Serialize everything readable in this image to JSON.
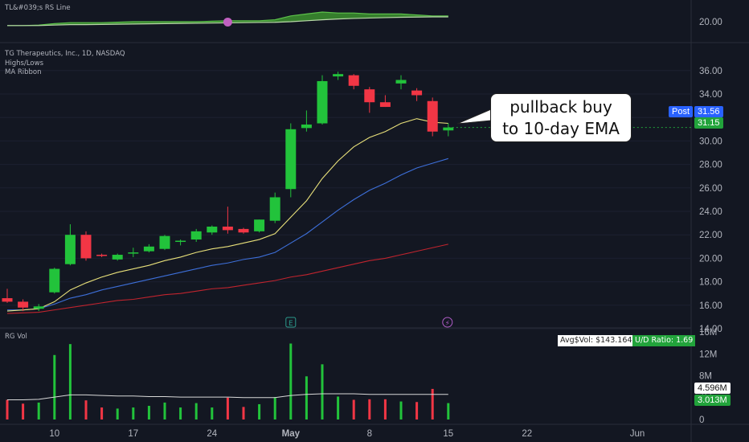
{
  "rs_pane": {
    "label": "TL&#039;s RS Line",
    "scale_label": "20.00"
  },
  "price_pane": {
    "title": "TG Therapeutics, Inc., 1D, NASDAQ",
    "indicators": [
      "Highs/Lows",
      "MA Ribbon"
    ],
    "post_label": "Post",
    "post_price": "31.56",
    "last_price": "31.15",
    "event_markers": [
      "E",
      "⚡"
    ],
    "annotation": [
      "pullback buy",
      "to 10-day EMA"
    ]
  },
  "volume_pane": {
    "label": "RG Vol",
    "avg_dollar_vol": "Avg$Vol: $143.164M",
    "ud_ratio": "U/D Ratio: 1.69",
    "avg_vol_label": "4.596M",
    "last_vol_label": "3.013M",
    "ticks": [
      "16M",
      "12M",
      "8M",
      "4M",
      "0"
    ]
  },
  "x_axis": {
    "labels": [
      {
        "text": "10",
        "index": 3
      },
      {
        "text": "17",
        "index": 8
      },
      {
        "text": "24",
        "index": 13
      },
      {
        "text": "May",
        "index": 18
      },
      {
        "text": "8",
        "index": 23
      },
      {
        "text": "15",
        "index": 28
      },
      {
        "text": "22",
        "index": 33
      },
      {
        "text": "Jun",
        "index": 40
      }
    ]
  },
  "colors": {
    "background": "#131722",
    "up": "#22c33b",
    "down": "#f23645",
    "ema10": "#e8e07a",
    "ma21": "#3d6fd9",
    "ma50": "#c0242e",
    "rs_fill": "#3a8a2e",
    "rs_line": "#b8d9a8",
    "rs_marker": "#c060c0",
    "post_badge": "#2962ff",
    "last_badge": "#22a33b"
  },
  "chart_data": {
    "type": "candlestick",
    "title": "TG Therapeutics, Inc., 1D, NASDAQ",
    "y_ticks": [
      14.0,
      16.0,
      18.0,
      20.0,
      22.0,
      24.0,
      26.0,
      28.0,
      30.0,
      32.0,
      34.0,
      36.0
    ],
    "ylim": [
      14,
      37.2
    ],
    "candles": [
      {
        "o": 16.6,
        "h": 17.4,
        "l": 16.2,
        "c": 16.3
      },
      {
        "o": 16.3,
        "h": 16.5,
        "l": 15.5,
        "c": 15.8
      },
      {
        "o": 15.7,
        "h": 16.1,
        "l": 15.5,
        "c": 15.9
      },
      {
        "o": 17.1,
        "h": 19.2,
        "l": 17.0,
        "c": 19.1
      },
      {
        "o": 19.5,
        "h": 22.9,
        "l": 19.4,
        "c": 22.0
      },
      {
        "o": 22.0,
        "h": 22.3,
        "l": 19.8,
        "c": 20.0
      },
      {
        "o": 20.3,
        "h": 20.4,
        "l": 20.1,
        "c": 20.2
      },
      {
        "o": 19.9,
        "h": 20.4,
        "l": 19.8,
        "c": 20.3
      },
      {
        "o": 20.4,
        "h": 20.9,
        "l": 20.1,
        "c": 20.5
      },
      {
        "o": 20.6,
        "h": 21.2,
        "l": 20.5,
        "c": 21.0
      },
      {
        "o": 20.8,
        "h": 22.0,
        "l": 20.7,
        "c": 21.9
      },
      {
        "o": 21.4,
        "h": 21.6,
        "l": 21.1,
        "c": 21.5
      },
      {
        "o": 21.6,
        "h": 22.5,
        "l": 21.4,
        "c": 22.3
      },
      {
        "o": 22.2,
        "h": 22.8,
        "l": 22.0,
        "c": 22.7
      },
      {
        "o": 22.7,
        "h": 24.4,
        "l": 22.1,
        "c": 22.4
      },
      {
        "o": 22.5,
        "h": 22.6,
        "l": 22.1,
        "c": 22.2
      },
      {
        "o": 22.3,
        "h": 23.3,
        "l": 22.2,
        "c": 23.3
      },
      {
        "o": 23.2,
        "h": 25.6,
        "l": 23.0,
        "c": 25.2
      },
      {
        "o": 25.9,
        "h": 31.5,
        "l": 25.2,
        "c": 31.0
      },
      {
        "o": 31.1,
        "h": 32.6,
        "l": 30.8,
        "c": 31.4
      },
      {
        "o": 31.5,
        "h": 35.6,
        "l": 31.4,
        "c": 35.1
      },
      {
        "o": 35.5,
        "h": 35.9,
        "l": 35.2,
        "c": 35.7
      },
      {
        "o": 35.6,
        "h": 35.7,
        "l": 34.4,
        "c": 34.7
      },
      {
        "o": 34.4,
        "h": 34.6,
        "l": 32.4,
        "c": 33.3
      },
      {
        "o": 33.3,
        "h": 33.9,
        "l": 32.9,
        "c": 32.9
      },
      {
        "o": 34.9,
        "h": 35.6,
        "l": 34.4,
        "c": 35.2
      },
      {
        "o": 34.3,
        "h": 34.5,
        "l": 33.4,
        "c": 33.9
      },
      {
        "o": 33.4,
        "h": 33.7,
        "l": 30.4,
        "c": 30.8
      },
      {
        "o": 30.9,
        "h": 31.5,
        "l": 30.4,
        "c": 31.15
      }
    ],
    "ema10": [
      15.5,
      15.6,
      15.7,
      16.3,
      17.3,
      17.9,
      18.4,
      18.8,
      19.1,
      19.4,
      19.8,
      20.1,
      20.5,
      20.8,
      21.0,
      21.3,
      21.6,
      22.1,
      23.5,
      24.9,
      26.8,
      28.3,
      29.5,
      30.3,
      30.8,
      31.5,
      31.9,
      31.6,
      31.5
    ],
    "ma21": [
      15.6,
      15.6,
      15.7,
      16.1,
      16.6,
      16.9,
      17.3,
      17.6,
      17.9,
      18.2,
      18.5,
      18.8,
      19.1,
      19.4,
      19.6,
      19.9,
      20.1,
      20.5,
      21.3,
      22.1,
      23.1,
      24.1,
      25.0,
      25.8,
      26.4,
      27.1,
      27.7,
      28.1,
      28.5
    ],
    "ma50": [
      15.3,
      15.35,
      15.4,
      15.6,
      15.8,
      16.0,
      16.2,
      16.4,
      16.5,
      16.7,
      16.9,
      17.0,
      17.2,
      17.4,
      17.5,
      17.7,
      17.9,
      18.1,
      18.4,
      18.6,
      18.9,
      19.2,
      19.5,
      19.8,
      20.0,
      20.3,
      20.6,
      20.9,
      21.2
    ],
    "volume": {
      "ylim": [
        0,
        16
      ],
      "values": [
        3.6,
        2.9,
        3.1,
        11.8,
        13.8,
        3.5,
        2.2,
        2.0,
        2.2,
        2.5,
        3.1,
        2.2,
        3.0,
        2.2,
        4.0,
        2.3,
        2.8,
        4.1,
        13.9,
        7.9,
        10.1,
        4.2,
        3.6,
        3.7,
        3.7,
        3.3,
        3.2,
        5.6,
        3.0
      ],
      "avg": [
        3.6,
        3.6,
        3.7,
        4.1,
        4.5,
        4.5,
        4.4,
        4.3,
        4.3,
        4.2,
        4.2,
        4.1,
        4.1,
        4.1,
        4.1,
        4.0,
        4.0,
        4.0,
        4.4,
        4.6,
        4.7,
        4.7,
        4.7,
        4.6,
        4.6,
        4.6,
        4.6,
        4.6,
        4.6
      ]
    },
    "rs_line": {
      "upper": [
        19.6,
        19.6,
        19.65,
        19.8,
        19.9,
        19.9,
        19.9,
        19.95,
        20.0,
        20.0,
        20.0,
        20.0,
        20.0,
        20.05,
        20.1,
        20.1,
        20.1,
        20.2,
        20.6,
        20.8,
        21.0,
        20.9,
        20.9,
        20.8,
        20.8,
        20.8,
        20.7,
        20.6,
        20.6
      ],
      "lower": [
        19.6,
        19.6,
        19.6,
        19.65,
        19.7,
        19.7,
        19.72,
        19.74,
        19.76,
        19.78,
        19.8,
        19.82,
        19.84,
        19.86,
        19.88,
        19.9,
        19.92,
        19.94,
        20.0,
        20.1,
        20.2,
        20.28,
        20.34,
        20.38,
        20.42,
        20.46,
        20.48,
        20.5,
        20.5
      ],
      "marker_index": 14
    }
  }
}
